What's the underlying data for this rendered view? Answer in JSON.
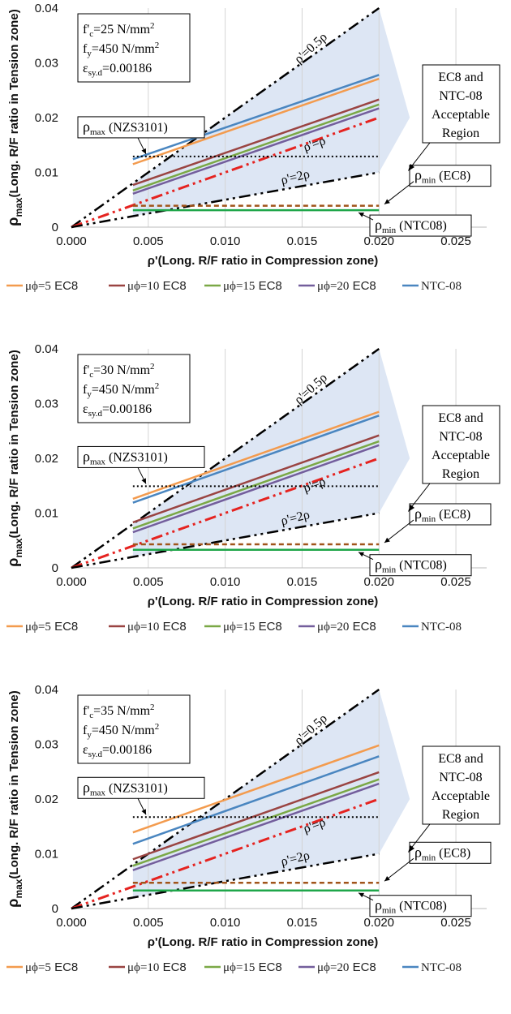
{
  "chart_data": [
    {
      "type": "line",
      "params": [
        "f'c=25 N/mm2",
        "fy=450 N/mm2",
        "εsy.d=0.00186"
      ],
      "params_parts": [
        [
          "f'",
          "c",
          "=25 N/mm",
          "2"
        ],
        [
          "f",
          "y",
          "=450 N/mm",
          "2"
        ],
        [
          "ε",
          "sy.d",
          "=0.00186",
          ""
        ]
      ],
      "xlabel": "ρ'(Long. R/F ratio in Compression zone)",
      "ylabel_main": "ρ",
      "ylabel_sub": "max",
      "ylabel_rest": "(Long. R/F ratio in Tension zone)",
      "xlim": [
        0,
        0.027
      ],
      "ylim": [
        0,
        0.04
      ],
      "xticks": [
        "0.000",
        "0.005",
        "0.010",
        "0.015",
        "0.020",
        "0.025"
      ],
      "xtick_values": [
        0,
        0.005,
        0.01,
        0.015,
        0.02,
        0.025
      ],
      "yticks": [
        "0",
        "0.01",
        "0.02",
        "0.03",
        "0.04"
      ],
      "ytick_values": [
        0,
        0.01,
        0.02,
        0.03,
        0.04
      ],
      "grid": "vertical",
      "legend_position": "bottom",
      "series": [
        {
          "name": "μϕ=5",
          "unit": "EC8",
          "color": "#f39b4e",
          "x": [
            0.004,
            0.02
          ],
          "y": [
            0.0115,
            0.0271
          ]
        },
        {
          "name": "μϕ=10",
          "unit": "EC8",
          "color": "#9a4442",
          "x": [
            0.004,
            0.02
          ],
          "y": [
            0.0077,
            0.0233
          ]
        },
        {
          "name": "μϕ=15",
          "unit": "EC8",
          "color": "#7aa846",
          "x": [
            0.004,
            0.02
          ],
          "y": [
            0.0067,
            0.0224
          ]
        },
        {
          "name": "μϕ=20",
          "unit": "EC8",
          "color": "#735e9c",
          "x": [
            0.004,
            0.02
          ],
          "y": [
            0.0061,
            0.0217
          ]
        },
        {
          "name": "NTC-08",
          "unit": "",
          "color": "#4a86c0",
          "x": [
            0.004,
            0.02
          ],
          "y": [
            0.0124,
            0.0278
          ]
        }
      ],
      "rho_max_value": 0.0129,
      "rho_min_ec8_value": 0.0039,
      "rho_min_ntc_value": 0.0031,
      "labels": {
        "line_half": "ρ'=0.5ρ",
        "line_equal": "ρ'=ρ",
        "line_double": "ρ'=2ρ",
        "rho_max_main": "ρ",
        "rho_max_sub": "max",
        "rho_max_rest": " (NZS3101)",
        "rho_min_ec8_main": "ρ",
        "rho_min_ec8_sub": "min",
        "rho_min_ec8_rest": " (EC8)",
        "rho_min_ntc_main": "ρ",
        "rho_min_ntc_sub": "min",
        "rho_min_ntc_rest": " (NTC08)",
        "region": [
          "EC8 and",
          "NTC-08",
          "Acceptable",
          "Region"
        ]
      }
    },
    {
      "type": "line",
      "params": [
        "f'c=30 N/mm2",
        "fy=450 N/mm2",
        "εsy.d=0.00186"
      ],
      "params_parts": [
        [
          "f'",
          "c",
          "=30 N/mm",
          "2"
        ],
        [
          "f",
          "y",
          "=450 N/mm",
          "2"
        ],
        [
          "ε",
          "sy.d",
          "=0.00186",
          ""
        ]
      ],
      "xlabel": "ρ'(Long. R/F ratio in Compression zone)",
      "ylabel_main": "ρ",
      "ylabel_sub": "max",
      "ylabel_rest": "(Long. R/F ratio in Tension zone)",
      "xlim": [
        0,
        0.027
      ],
      "ylim": [
        0,
        0.04
      ],
      "xticks": [
        "0.000",
        "0.005",
        "0.010",
        "0.015",
        "0.020",
        "0.025"
      ],
      "xtick_values": [
        0,
        0.005,
        0.01,
        0.015,
        0.02,
        0.025
      ],
      "yticks": [
        "0",
        "0.01",
        "0.02",
        "0.03",
        "0.04"
      ],
      "ytick_values": [
        0,
        0.01,
        0.02,
        0.03,
        0.04
      ],
      "grid": "vertical",
      "legend_position": "bottom",
      "series": [
        {
          "name": "μϕ=5",
          "unit": "EC8",
          "color": "#f39b4e",
          "x": [
            0.004,
            0.02
          ],
          "y": [
            0.0126,
            0.0285
          ]
        },
        {
          "name": "μϕ=10",
          "unit": "EC8",
          "color": "#9a4442",
          "x": [
            0.004,
            0.02
          ],
          "y": [
            0.0083,
            0.0242
          ]
        },
        {
          "name": "μϕ=15",
          "unit": "EC8",
          "color": "#7aa846",
          "x": [
            0.004,
            0.02
          ],
          "y": [
            0.0072,
            0.0231
          ]
        },
        {
          "name": "μϕ=20",
          "unit": "EC8",
          "color": "#735e9c",
          "x": [
            0.004,
            0.02
          ],
          "y": [
            0.0065,
            0.0224
          ]
        },
        {
          "name": "NTC-08",
          "unit": "",
          "color": "#4a86c0",
          "x": [
            0.004,
            0.02
          ],
          "y": [
            0.0119,
            0.0278
          ]
        }
      ],
      "rho_max_value": 0.0149,
      "rho_min_ec8_value": 0.0043,
      "rho_min_ntc_value": 0.0033,
      "labels": {
        "line_half": "ρ'=0.5ρ",
        "line_equal": "ρ'=ρ",
        "line_double": "ρ'=2ρ",
        "rho_max_main": "ρ",
        "rho_max_sub": "max",
        "rho_max_rest": " (NZS3101)",
        "rho_min_ec8_main": "ρ",
        "rho_min_ec8_sub": "min",
        "rho_min_ec8_rest": " (EC8)",
        "rho_min_ntc_main": "ρ",
        "rho_min_ntc_sub": "min",
        "rho_min_ntc_rest": " (NTC08)",
        "region": [
          "EC8 and",
          "NTC-08",
          "Acceptable",
          "Region"
        ]
      }
    },
    {
      "type": "line",
      "params": [
        "f'c=35 N/mm2",
        "fy=450 N/mm2",
        "εsy.d=0.00186"
      ],
      "params_parts": [
        [
          "f'",
          "c",
          "=35 N/mm",
          "2"
        ],
        [
          "f",
          "y",
          "=450 N/mm",
          "2"
        ],
        [
          "ε",
          "sy.d",
          "=0.00186",
          ""
        ]
      ],
      "xlabel": "ρ'(Long. R/F ratio in Compression zone)",
      "ylabel_main": "ρ",
      "ylabel_sub": "max",
      "ylabel_rest": "(Long. R/F ratio in Tension zone)",
      "xlim": [
        0,
        0.027
      ],
      "ylim": [
        0,
        0.04
      ],
      "xticks": [
        "0.000",
        "0.005",
        "0.010",
        "0.015",
        "0.020",
        "0.025"
      ],
      "xtick_values": [
        0,
        0.005,
        0.01,
        0.015,
        0.02,
        0.025
      ],
      "yticks": [
        "0",
        "0.01",
        "0.02",
        "0.03",
        "0.04"
      ],
      "ytick_values": [
        0,
        0.01,
        0.02,
        0.03,
        0.04
      ],
      "grid": "vertical",
      "legend_position": "bottom",
      "series": [
        {
          "name": "μϕ=5",
          "unit": "EC8",
          "color": "#f39b4e",
          "x": [
            0.004,
            0.02
          ],
          "y": [
            0.0139,
            0.0298
          ]
        },
        {
          "name": "μϕ=10",
          "unit": "EC8",
          "color": "#9a4442",
          "x": [
            0.004,
            0.02
          ],
          "y": [
            0.009,
            0.0249
          ]
        },
        {
          "name": "μϕ=15",
          "unit": "EC8",
          "color": "#7aa846",
          "x": [
            0.004,
            0.02
          ],
          "y": [
            0.0078,
            0.0236
          ]
        },
        {
          "name": "μϕ=20",
          "unit": "EC8",
          "color": "#735e9c",
          "x": [
            0.004,
            0.02
          ],
          "y": [
            0.007,
            0.0228
          ]
        },
        {
          "name": "NTC-08",
          "unit": "",
          "color": "#4a86c0",
          "x": [
            0.004,
            0.02
          ],
          "y": [
            0.0118,
            0.0278
          ]
        }
      ],
      "rho_max_value": 0.0167,
      "rho_min_ec8_value": 0.0047,
      "rho_min_ntc_value": 0.0033,
      "labels": {
        "line_half": "ρ'=0.5ρ",
        "line_equal": "ρ'=ρ",
        "line_double": "ρ'=2ρ",
        "rho_max_main": "ρ",
        "rho_max_sub": "max",
        "rho_max_rest": " (NZS3101)",
        "rho_min_ec8_main": "ρ",
        "rho_min_ec8_sub": "min",
        "rho_min_ec8_rest": " (EC8)",
        "rho_min_ntc_main": "ρ",
        "rho_min_ntc_sub": "min",
        "rho_min_ntc_rest": " (NTC08)",
        "region": [
          "EC8 and",
          "NTC-08",
          "Acceptable",
          "Region"
        ]
      }
    }
  ],
  "colors": {
    "ref_black": "#000000",
    "ref_red": "#e52320",
    "rho_min_ec8": "#a0541a",
    "rho_min_ntc": "#1fa64a",
    "region_fill": "#dbe5f3",
    "grid": "#d4d4d4"
  }
}
